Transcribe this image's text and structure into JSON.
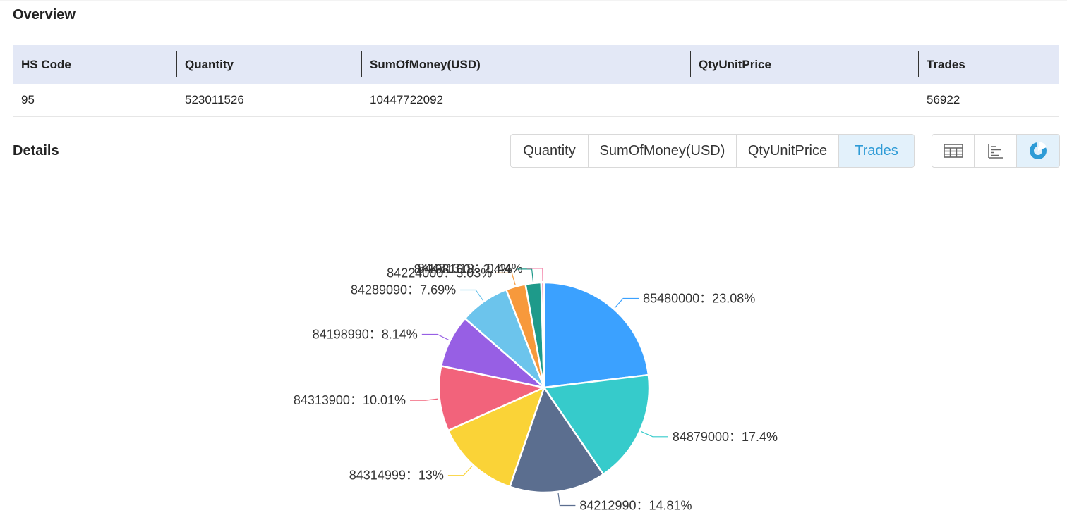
{
  "overview": {
    "title": "Overview",
    "columns": [
      "HS Code",
      "Quantity",
      "SumOfMoney(USD)",
      "QtyUnitPrice",
      "Trades"
    ],
    "row": {
      "hs_code": "95",
      "quantity": "523011526",
      "sum_of_money": "10447722092",
      "qty_unit_price": "",
      "trades": "56922"
    }
  },
  "details": {
    "title": "Details",
    "metric_tabs": [
      {
        "label": "Quantity",
        "active": false
      },
      {
        "label": "SumOfMoney(USD)",
        "active": false
      },
      {
        "label": "QtyUnitPrice",
        "active": false
      },
      {
        "label": "Trades",
        "active": true
      }
    ],
    "view_buttons": [
      {
        "icon": "table-icon",
        "active": false
      },
      {
        "icon": "bar-chart-icon",
        "active": false
      },
      {
        "icon": "pie-chart-icon",
        "active": true
      }
    ]
  },
  "colors": {
    "accent": "#2e9bd6",
    "header_bg": "#e3e8f6",
    "active_bg": "#e3f1fb"
  },
  "chart_data": {
    "type": "pie",
    "title": "",
    "slices": [
      {
        "name": "85480000",
        "value": 23.08,
        "label": "85480000：23.08%",
        "color": "#3ba1ff"
      },
      {
        "name": "84879000",
        "value": 17.4,
        "label": "84879000：17.4%",
        "color": "#36cbcb"
      },
      {
        "name": "84212990",
        "value": 14.81,
        "label": "84212990：14.81%",
        "color": "#5b6e8f"
      },
      {
        "name": "84314999",
        "value": 13,
        "label": "84314999：13%",
        "color": "#fad337"
      },
      {
        "name": "84313900",
        "value": 10.01,
        "label": "84313900：10.01%",
        "color": "#f2637b"
      },
      {
        "name": "84198990",
        "value": 8.14,
        "label": "84198990：8.14%",
        "color": "#975fe4"
      },
      {
        "name": "84289090",
        "value": 7.69,
        "label": "84289090：7.69%",
        "color": "#6cc4ec"
      },
      {
        "name": "84224000",
        "value": 3.03,
        "label": "84224000：3.03%",
        "color": "#f7993c"
      },
      {
        "name": "84198100",
        "value": 2.4,
        "label": "84198100：2.4%",
        "color": "#1e9a8a"
      },
      {
        "name": "84431319",
        "value": 0.44,
        "label": "84431319：0.44%",
        "color": "#f48fb1"
      }
    ]
  }
}
